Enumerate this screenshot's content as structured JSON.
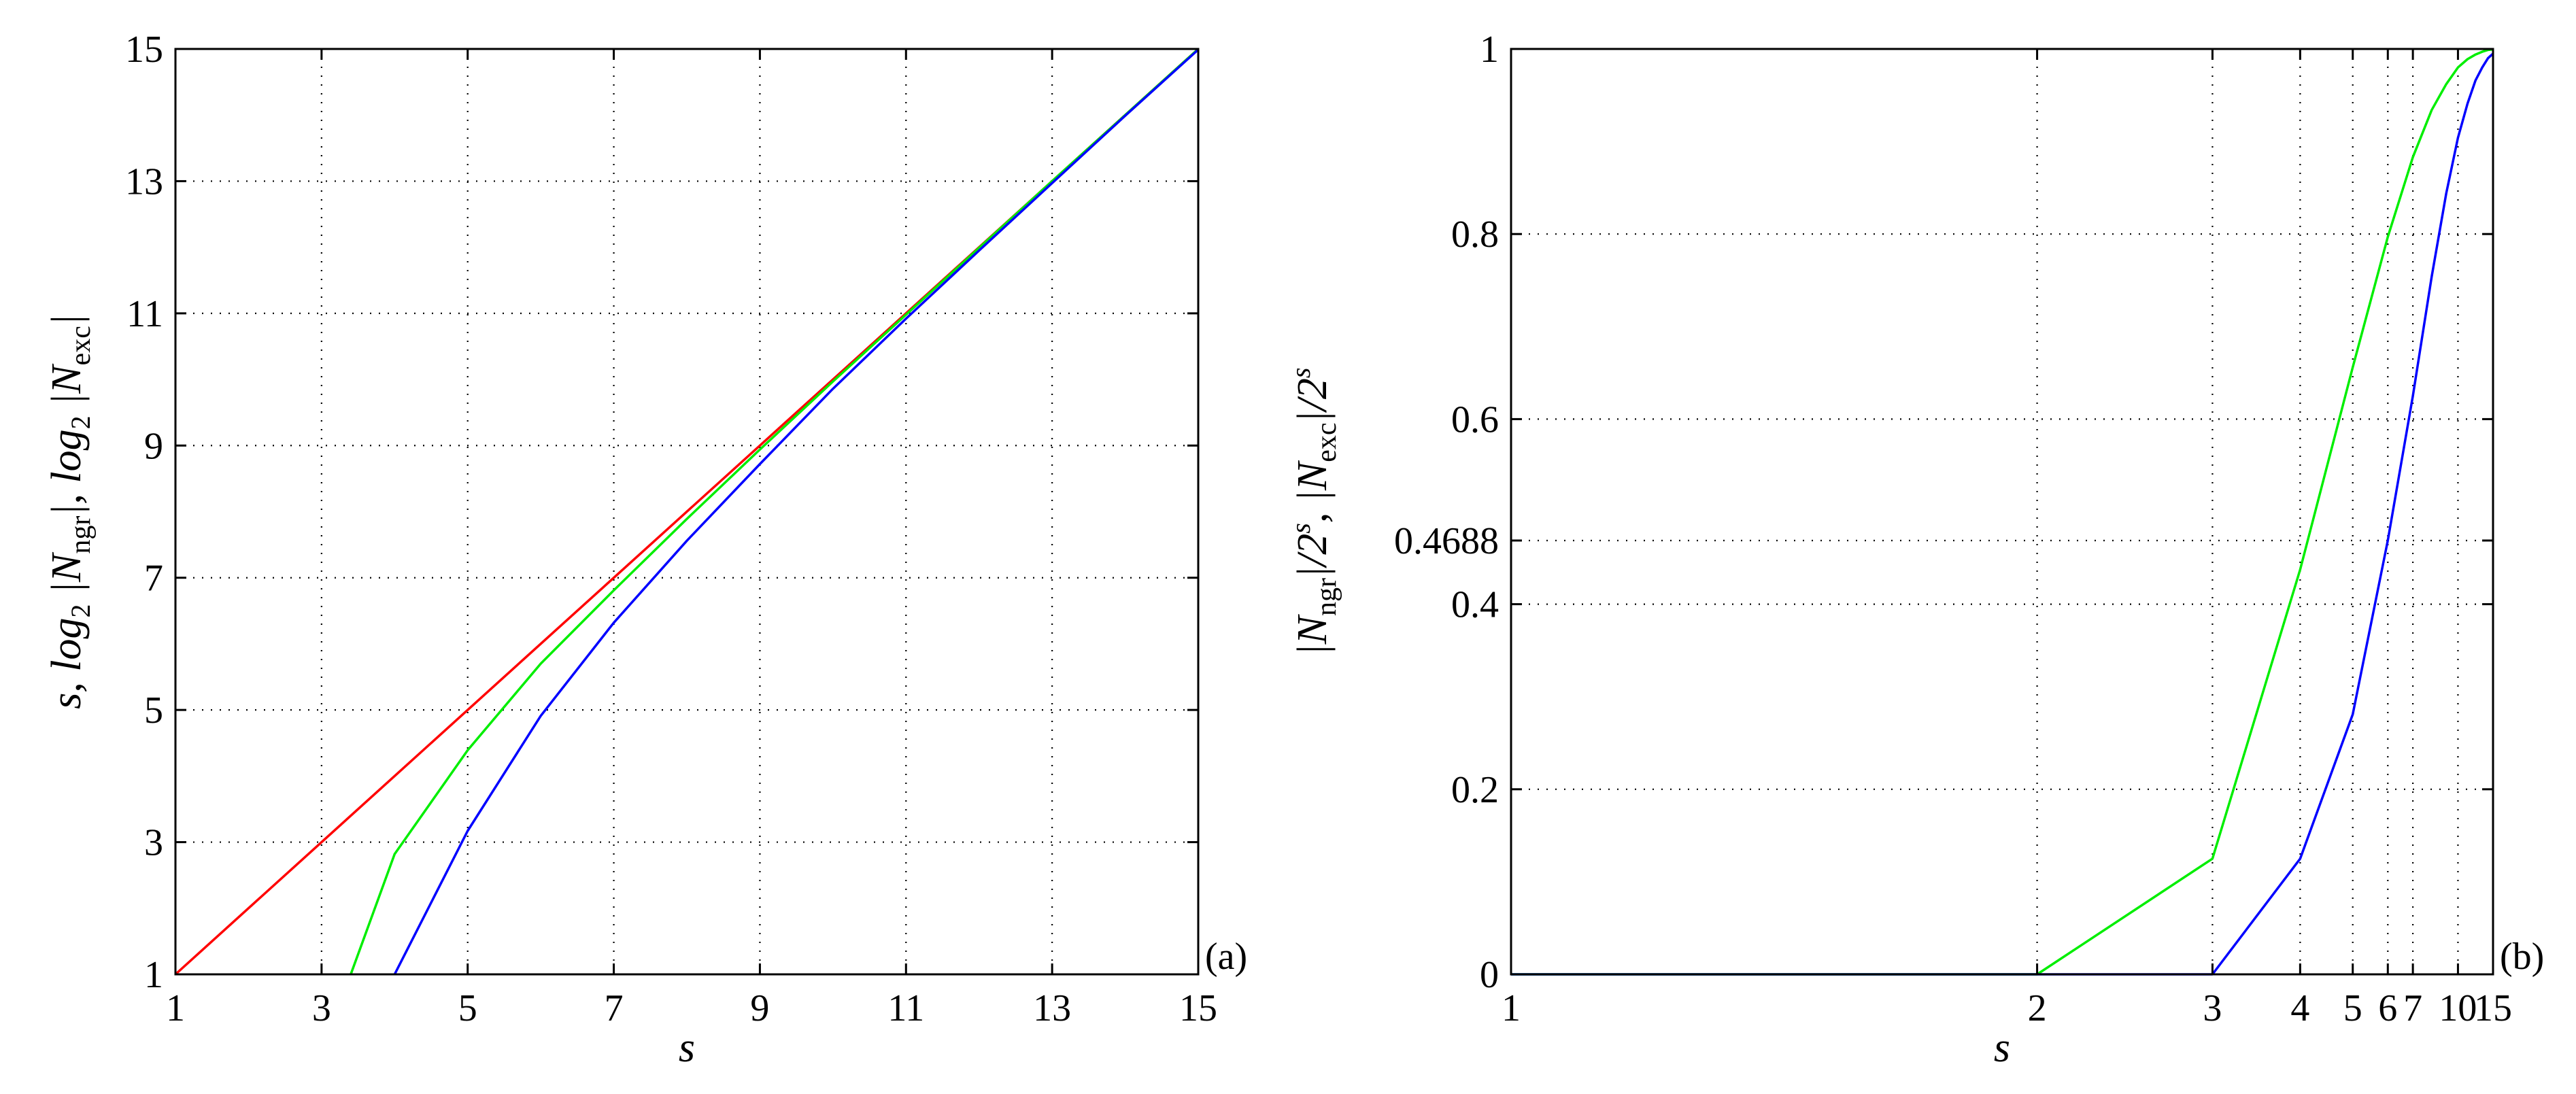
{
  "chart_data": [
    {
      "type": "line",
      "panel_label": "(a)",
      "xlabel": "s",
      "ylabel": "s, log₂ |N_ngr|, log₂ |N_exc|",
      "ylabel_parts": {
        "p1": "s, log",
        "sub1": "2",
        "p2": " |N",
        "sub2": "ngr",
        "p3": "|, log",
        "sub3": "2",
        "p4": " |N",
        "sub4": "exc",
        "p5": "|"
      },
      "xlim": [
        1,
        15
      ],
      "ylim": [
        1,
        15
      ],
      "xticks": [
        1,
        3,
        5,
        7,
        9,
        11,
        13,
        15
      ],
      "yticks": [
        1,
        3,
        5,
        7,
        9,
        11,
        13,
        15
      ],
      "grid": true,
      "series": [
        {
          "color": "#ff0000",
          "x": [
            1,
            15
          ],
          "y": [
            1,
            15
          ]
        },
        {
          "color": "#00ee00",
          "x": [
            3.4,
            4,
            5,
            6,
            7,
            8,
            9,
            10,
            11,
            12,
            13,
            14,
            15
          ],
          "y": [
            1,
            2.82,
            4.39,
            5.7,
            6.81,
            7.89,
            8.94,
            9.97,
            10.98,
            11.99,
            13.0,
            14.0,
            15.0
          ]
        },
        {
          "color": "#0000ff",
          "x": [
            4,
            5,
            6,
            7,
            8,
            9,
            10,
            11,
            12,
            13,
            14,
            15
          ],
          "y": [
            1,
            3.17,
            4.91,
            6.32,
            7.56,
            8.72,
            9.86,
            10.92,
            11.95,
            12.97,
            13.99,
            14.99
          ]
        }
      ]
    },
    {
      "type": "line",
      "panel_label": "(b)",
      "xlabel": "s",
      "ylabel": "|N_ngr|/2^s, |N_exc|/2^s",
      "ylabel_parts": {
        "p1": "|N",
        "sub1": "ngr",
        "p2": "|/2",
        "sup1": "s",
        "p3": ", |N",
        "sub2": "exc",
        "p4": "|/2",
        "sup2": "s"
      },
      "xlim": [
        1,
        15
      ],
      "ylim": [
        0,
        1
      ],
      "x_scale": "reciprocal",
      "xticks": [
        1,
        2,
        3,
        4,
        5,
        6,
        7,
        10,
        15
      ],
      "yticks": [
        0,
        0.2,
        0.4,
        0.4688,
        0.6,
        0.8,
        1
      ],
      "ytick_labels": [
        "0",
        "0.2",
        "0.4",
        "0.4688",
        "0.6",
        "0.8",
        "1"
      ],
      "grid": true,
      "series": [
        {
          "color": "#00ee00",
          "x": [
            1,
            2,
            3,
            4,
            5,
            6,
            7,
            8,
            9,
            10,
            11,
            12,
            13,
            14,
            15
          ],
          "y": [
            0,
            0,
            0.125,
            0.4375,
            0.656,
            0.797,
            0.883,
            0.934,
            0.962,
            0.98,
            0.989,
            0.994,
            0.997,
            0.999,
            0.9995
          ]
        },
        {
          "color": "#0000ff",
          "x": [
            1,
            2,
            3,
            4,
            5,
            6,
            7,
            8,
            9,
            10,
            11,
            12,
            13,
            14,
            15
          ],
          "y": [
            0,
            0,
            0,
            0.125,
            0.281,
            0.469,
            0.625,
            0.754,
            0.844,
            0.904,
            0.941,
            0.966,
            0.98,
            0.99,
            0.995
          ]
        }
      ]
    }
  ]
}
